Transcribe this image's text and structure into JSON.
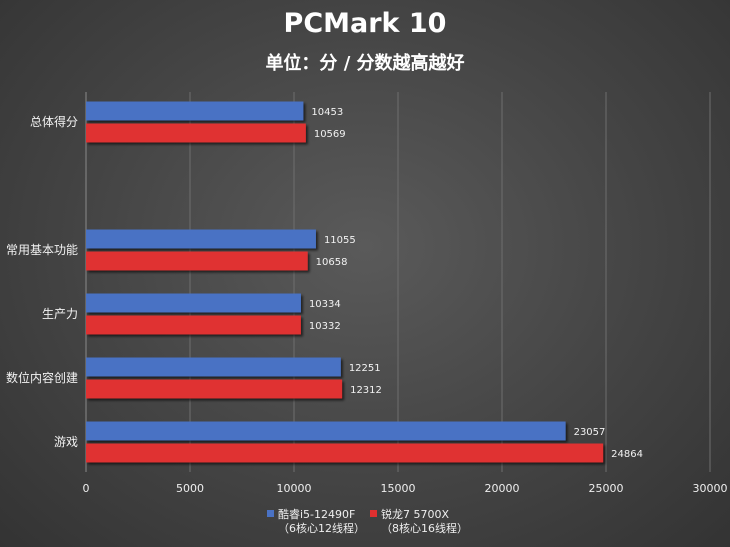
{
  "chart_data": {
    "type": "bar",
    "orientation": "horizontal",
    "title": "PCMark 10",
    "subtitle": "单位：分 / 分数越高越好",
    "categories": [
      "总体得分",
      "常用基本功能",
      "生产力",
      "数位内容创建",
      "游戏"
    ],
    "series": [
      {
        "name": "酷睿i5-12490F",
        "name_sub": "（6核心12线程）",
        "color": "#4a72c4",
        "values": [
          10453,
          11055,
          10334,
          12251,
          23057
        ]
      },
      {
        "name": "锐龙7 5700X",
        "name_sub": "（8核心16线程）",
        "color": "#e03030",
        "values": [
          10569,
          10658,
          10332,
          12312,
          24864
        ]
      }
    ],
    "xlim": [
      0,
      30000
    ],
    "xticks": [
      0,
      5000,
      10000,
      15000,
      20000,
      25000,
      30000
    ],
    "grid": true,
    "legend_position": "bottom"
  }
}
